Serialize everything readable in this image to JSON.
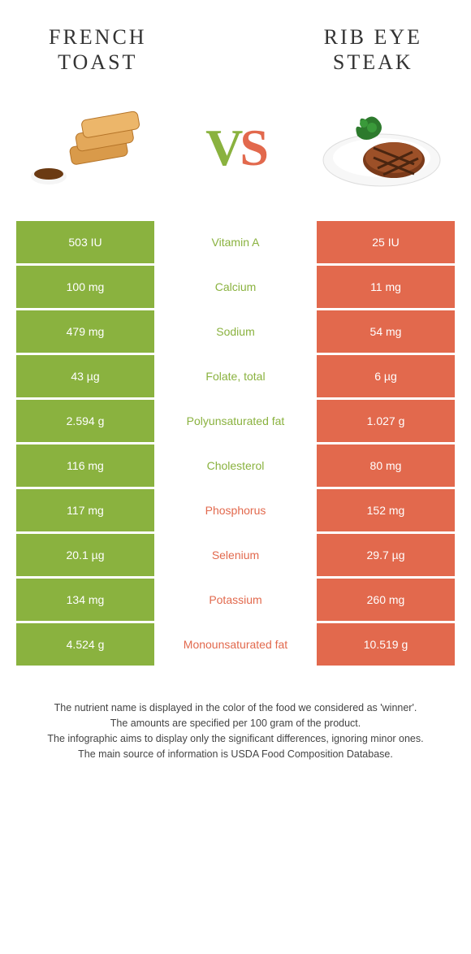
{
  "colors": {
    "green": "#8ab23f",
    "orange": "#e2694d",
    "text": "#333333",
    "footer_text": "#444444",
    "white": "#ffffff"
  },
  "header": {
    "left_line1": "FRENCH",
    "left_line2": "TOAST",
    "right_line1": "RIB EYE",
    "right_line2": "STEAK"
  },
  "vs": {
    "v": "V",
    "s": "S"
  },
  "rows": [
    {
      "left": "503 IU",
      "label": "Vitamin A",
      "right": "25 IU",
      "winner": "green"
    },
    {
      "left": "100 mg",
      "label": "Calcium",
      "right": "11 mg",
      "winner": "green"
    },
    {
      "left": "479 mg",
      "label": "Sodium",
      "right": "54 mg",
      "winner": "green"
    },
    {
      "left": "43 µg",
      "label": "Folate, total",
      "right": "6 µg",
      "winner": "green"
    },
    {
      "left": "2.594 g",
      "label": "Polyunsaturated fat",
      "right": "1.027 g",
      "winner": "green"
    },
    {
      "left": "116 mg",
      "label": "Cholesterol",
      "right": "80 mg",
      "winner": "green"
    },
    {
      "left": "117 mg",
      "label": "Phosphorus",
      "right": "152 mg",
      "winner": "orange"
    },
    {
      "left": "20.1 µg",
      "label": "Selenium",
      "right": "29.7 µg",
      "winner": "orange"
    },
    {
      "left": "134 mg",
      "label": "Potassium",
      "right": "260 mg",
      "winner": "orange"
    },
    {
      "left": "4.524 g",
      "label": "Monounsaturated fat",
      "right": "10.519 g",
      "winner": "orange"
    }
  ],
  "footer": {
    "line1": "The nutrient name is displayed in the color of the food we considered as 'winner'.",
    "line2": "The amounts are specified per 100 gram of the product.",
    "line3": "The infographic aims to display only the significant differences, ignoring minor ones.",
    "line4": "The main source of information is USDA Food Composition Database."
  }
}
